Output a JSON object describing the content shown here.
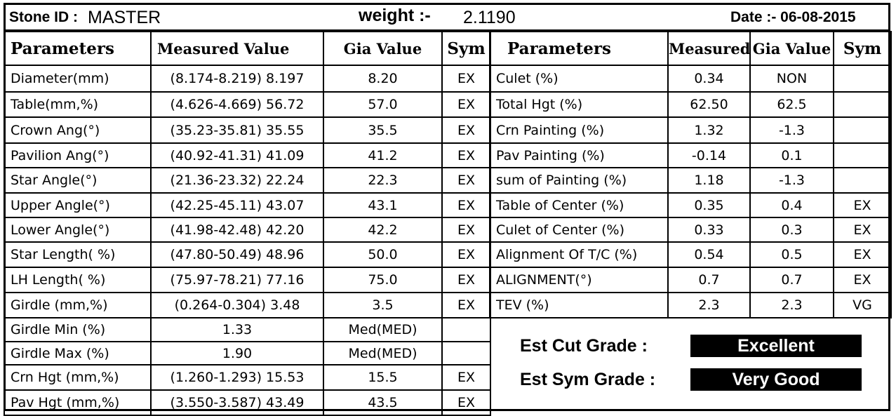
{
  "header": {
    "stone_id_label": "Stone ID :",
    "stone_id_value": "MASTER",
    "weight_label": "weight :-",
    "weight_value": "2.1190",
    "date_label": "Date :- 06-08-2015"
  },
  "left_table": {
    "headers": [
      "Parameters",
      "Measured Value",
      "Gia Value",
      "Sym"
    ],
    "rows": [
      [
        "Diameter(mm)",
        "(8.174-8.219) 8.197",
        "8.20",
        "EX"
      ],
      [
        "Table(mm,%)",
        "(4.626-4.669) 56.72",
        "57.0",
        "EX"
      ],
      [
        "Crown Ang(°)",
        "(35.23-35.81) 35.55",
        "35.5",
        "EX"
      ],
      [
        "Pavilion Ang(°)",
        "(40.92-41.31) 41.09",
        "41.2",
        "EX"
      ],
      [
        "Star Angle(°)",
        "(21.36-23.32) 22.24",
        "22.3",
        "EX"
      ],
      [
        "Upper Angle(°)",
        "(42.25-45.11) 43.07",
        "43.1",
        "EX"
      ],
      [
        "Lower Angle(°)",
        "(41.98-42.48) 42.20",
        "42.2",
        "EX"
      ],
      [
        "Star Length( %)",
        "(47.80-50.49) 48.96",
        "50.0",
        "EX"
      ],
      [
        "LH Length( %)",
        "(75.97-78.21) 77.16",
        "75.0",
        "EX"
      ],
      [
        "Girdle (mm,%)",
        "(0.264-0.304) 3.48",
        "3.5",
        "EX"
      ],
      [
        "Girdle Min (%)",
        "1.33",
        "Med(MED)",
        ""
      ],
      [
        "Girdle Max (%)",
        "1.90",
        "Med(MED)",
        ""
      ],
      [
        "Crn Hgt (mm,%)",
        "(1.260-1.293) 15.53",
        "15.5",
        "EX"
      ],
      [
        "Pav Hgt (mm,%)",
        "(3.550-3.587) 43.49",
        "43.5",
        "EX"
      ]
    ]
  },
  "right_table": {
    "headers": [
      "Parameters",
      "Measured",
      "Gia Value",
      "Sym"
    ],
    "rows": [
      [
        "Culet (%)",
        "0.34",
        "NON",
        ""
      ],
      [
        "Total Hgt (%)",
        "62.50",
        "62.5",
        ""
      ],
      [
        "Crn Painting (%)",
        "1.32",
        "-1.3",
        ""
      ],
      [
        "Pav Painting (%)",
        "-0.14",
        "0.1",
        ""
      ],
      [
        "sum of Painting (%)",
        "1.18",
        "-1.3",
        ""
      ],
      [
        "Table of Center (%)",
        "0.35",
        "0.4",
        "EX"
      ],
      [
        "Culet of Center (%)",
        "0.33",
        "0.3",
        "EX"
      ],
      [
        "Alignment Of T/C (%)",
        "0.54",
        "0.5",
        "EX"
      ],
      [
        "ALIGNMENT(°)",
        "0.7",
        "0.7",
        "EX"
      ],
      [
        "TEV (%)",
        "2.3",
        "2.3",
        "VG"
      ]
    ]
  },
  "grades": {
    "cut_label": "Est Cut Grade  :",
    "cut_value": "Excellent",
    "sym_label": "Est Sym Grade :",
    "sym_value": "Very Good"
  }
}
